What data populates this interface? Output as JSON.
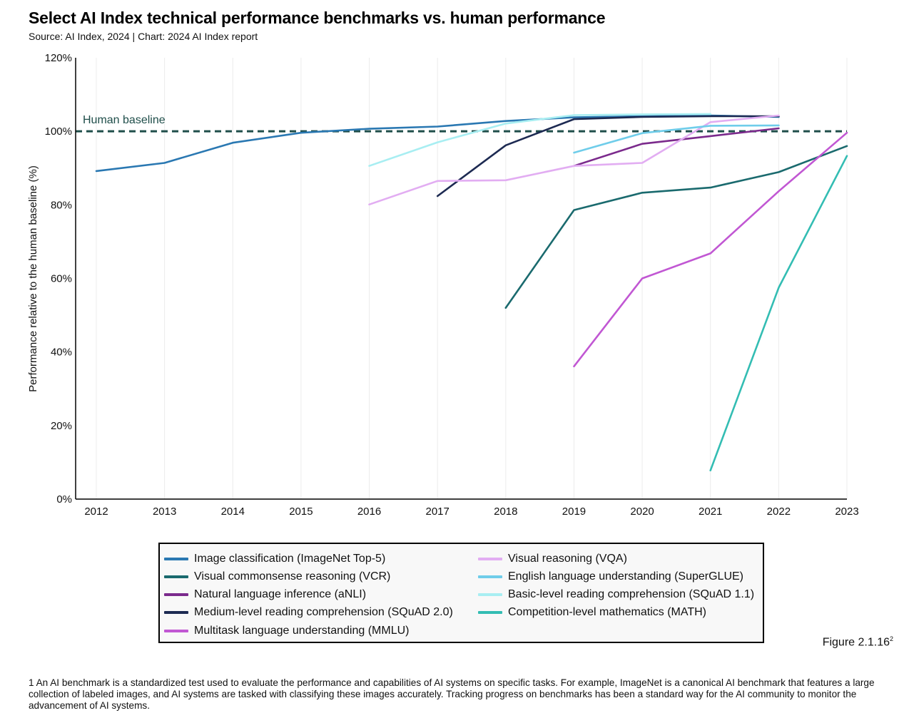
{
  "title": "Select AI Index technical performance benchmarks vs. human performance",
  "source": "Source: AI Index, 2024 | Chart: 2024 AI Index report",
  "figure_label": "Figure 2.1.16",
  "figure_label_sup": "2",
  "footnote": "1 An AI benchmark is a standardized test used to evaluate the performance and capabilities of AI systems on specific tasks. For example, ImageNet is a canonical AI benchmark that features a large collection of labeled images, and AI systems are tasked with classifying these images accurately. Tracking progress on benchmarks has been a standard way for the AI community to monitor the advancement of AI systems.",
  "chart_data": {
    "type": "line",
    "title": "Select AI Index technical performance benchmarks vs. human performance",
    "xlabel": "",
    "ylabel": "Performance relative to the human baseline (%)",
    "x_ticks": [
      "2012",
      "2013",
      "2014",
      "2015",
      "2016",
      "2017",
      "2018",
      "2019",
      "2020",
      "2021",
      "2022",
      "2023"
    ],
    "y_ticks": [
      "0%",
      "20%",
      "40%",
      "60%",
      "80%",
      "100%",
      "120%"
    ],
    "xlim": [
      2012,
      2023
    ],
    "ylim": [
      0,
      120
    ],
    "grid": "vertical",
    "legend_placement": "bottom",
    "baseline": {
      "label": "Human baseline",
      "value": 100,
      "color": "#1f4e4a"
    },
    "series": [
      {
        "name": "Image classification (ImageNet Top-5)",
        "color": "#2a78b2",
        "points": [
          [
            2012,
            89.2
          ],
          [
            2013,
            91.4
          ],
          [
            2014,
            96.9
          ],
          [
            2015,
            99.6
          ],
          [
            2016,
            100.7
          ],
          [
            2017,
            101.3
          ],
          [
            2018,
            102.8
          ],
          [
            2019,
            103.8
          ],
          [
            2020,
            104.1
          ],
          [
            2021,
            104.3
          ],
          [
            2022,
            103.9
          ]
        ]
      },
      {
        "name": "Visual commonsense reasoning (VCR)",
        "color": "#1a6a6e",
        "points": [
          [
            2018,
            52.0
          ],
          [
            2019,
            78.6
          ],
          [
            2020,
            83.3
          ],
          [
            2021,
            84.7
          ],
          [
            2022,
            88.9
          ],
          [
            2023,
            96.0
          ]
        ]
      },
      {
        "name": "Natural language inference (aNLI)",
        "color": "#7b2a8c",
        "points": [
          [
            2019,
            90.6
          ],
          [
            2020,
            96.6
          ],
          [
            2021,
            98.7
          ],
          [
            2022,
            100.8
          ]
        ]
      },
      {
        "name": "Medium-level reading comprehension (SQuAD 2.0)",
        "color": "#1d2a52",
        "points": [
          [
            2017,
            82.4
          ],
          [
            2018,
            96.2
          ],
          [
            2019,
            103.3
          ],
          [
            2020,
            103.9
          ],
          [
            2021,
            104.1
          ],
          [
            2022,
            104.1
          ]
        ]
      },
      {
        "name": "Multitask language understanding (MMLU)",
        "color": "#c157d3",
        "points": [
          [
            2019,
            36.1
          ],
          [
            2020,
            60.0
          ],
          [
            2021,
            66.8
          ],
          [
            2022,
            83.7
          ],
          [
            2023,
            99.6
          ]
        ]
      },
      {
        "name": "Visual reasoning (VQA)",
        "color": "#e2adf2",
        "points": [
          [
            2016,
            80.1
          ],
          [
            2017,
            86.5
          ],
          [
            2018,
            86.7
          ],
          [
            2019,
            90.6
          ],
          [
            2020,
            91.4
          ],
          [
            2021,
            102.5
          ],
          [
            2022,
            104.3
          ]
        ]
      },
      {
        "name": "English language understanding (SuperGLUE)",
        "color": "#6fcdea",
        "points": [
          [
            2019,
            94.2
          ],
          [
            2020,
            99.5
          ],
          [
            2021,
            101.5
          ],
          [
            2022,
            101.6
          ]
        ]
      },
      {
        "name": "Basic-level reading comprehension (SQuAD 1.1)",
        "color": "#a8eef2",
        "points": [
          [
            2016,
            90.6
          ],
          [
            2017,
            97.0
          ],
          [
            2018,
            102.1
          ],
          [
            2019,
            104.4
          ],
          [
            2020,
            104.6
          ],
          [
            2021,
            104.7
          ]
        ]
      },
      {
        "name": "Competition-level mathematics (MATH)",
        "color": "#33bdb3",
        "points": [
          [
            2021,
            7.8
          ],
          [
            2022,
            57.5
          ],
          [
            2023,
            93.3
          ]
        ]
      }
    ]
  }
}
